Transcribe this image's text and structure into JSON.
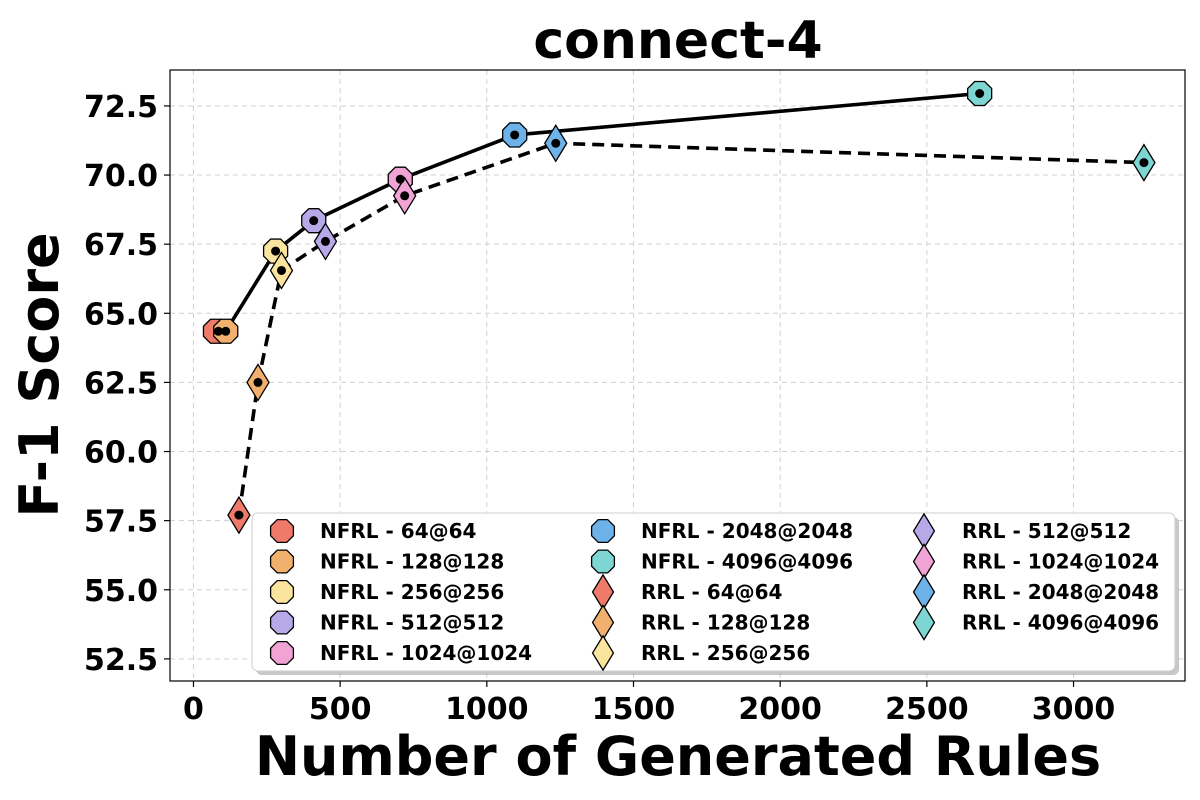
{
  "chart_data": {
    "type": "scatter",
    "title": "connect-4",
    "xlabel": "Number of Generated Rules",
    "ylabel": "F-1 Score",
    "xlim": [
      -80,
      3380
    ],
    "ylim": [
      51.7,
      73.8
    ],
    "xticks": [
      0,
      500,
      1000,
      1500,
      2000,
      2500,
      3000
    ],
    "xtick_labels": [
      "0",
      "500",
      "1000",
      "1500",
      "2000",
      "2500",
      "3000"
    ],
    "yticks": [
      52.5,
      55.0,
      57.5,
      60.0,
      62.5,
      65.0,
      67.5,
      70.0,
      72.5
    ],
    "ytick_labels": [
      "52.5",
      "55.0",
      "57.5",
      "60.0",
      "62.5",
      "65.0",
      "67.5",
      "70.0",
      "72.5"
    ],
    "grid": true,
    "legend_position": "lower-right",
    "legend_columns": 3,
    "colors": {
      "64@64": "#f07a6a",
      "128@128": "#f2b06e",
      "256@256": "#fbe49e",
      "512@512": "#b7a9e8",
      "1024@1024": "#f0a3d4",
      "2048@2048": "#6db3ea",
      "4096@4096": "#7dd6d2"
    },
    "series": [
      {
        "name": "NFRL",
        "marker": "octagon",
        "line_style": "solid",
        "points": [
          {
            "label": "NFRL - 64@64",
            "config": "64@64",
            "x": 85,
            "y": 64.35,
            "marker_x": 75
          },
          {
            "label": "NFRL - 128@128",
            "config": "128@128",
            "x": 110,
            "y": 64.35,
            "marker_x": 110
          },
          {
            "label": "NFRL - 256@256",
            "config": "256@256",
            "x": 280,
            "y": 67.25,
            "marker_x": 280
          },
          {
            "label": "NFRL - 512@512",
            "config": "512@512",
            "x": 410,
            "y": 68.35,
            "marker_x": 410
          },
          {
            "label": "NFRL - 1024@1024",
            "config": "1024@1024",
            "x": 705,
            "y": 69.85,
            "marker_x": 705
          },
          {
            "label": "NFRL - 2048@2048",
            "config": "2048@2048",
            "x": 1095,
            "y": 71.45,
            "marker_x": 1095
          },
          {
            "label": "NFRL - 4096@4096",
            "config": "4096@4096",
            "x": 2680,
            "y": 72.95,
            "marker_x": 2680
          }
        ]
      },
      {
        "name": "RRL",
        "marker": "thin_diamond",
        "line_style": "dashed",
        "points": [
          {
            "label": "RRL - 64@64",
            "config": "64@64",
            "x": 155,
            "y": 57.7,
            "marker_x": 155
          },
          {
            "label": "RRL - 128@128",
            "config": "128@128",
            "x": 220,
            "y": 62.5,
            "marker_x": 220
          },
          {
            "label": "RRL - 256@256",
            "config": "256@256",
            "x": 300,
            "y": 66.55,
            "marker_x": 300
          },
          {
            "label": "RRL - 512@512",
            "config": "512@512",
            "x": 450,
            "y": 67.6,
            "marker_x": 450
          },
          {
            "label": "RRL - 1024@1024",
            "config": "1024@1024",
            "x": 720,
            "y": 69.25,
            "marker_x": 720
          },
          {
            "label": "RRL - 2048@2048",
            "config": "2048@2048",
            "x": 1235,
            "y": 71.15,
            "marker_x": 1235
          },
          {
            "label": "RRL - 4096@4096",
            "config": "4096@4096",
            "x": 3240,
            "y": 70.45,
            "marker_x": 3240
          }
        ]
      }
    ],
    "legend_entries": [
      {
        "label": "NFRL - 64@64",
        "marker": "octagon",
        "config": "64@64"
      },
      {
        "label": "NFRL - 128@128",
        "marker": "octagon",
        "config": "128@128"
      },
      {
        "label": "NFRL - 256@256",
        "marker": "octagon",
        "config": "256@256"
      },
      {
        "label": "NFRL - 512@512",
        "marker": "octagon",
        "config": "512@512"
      },
      {
        "label": "NFRL - 1024@1024",
        "marker": "octagon",
        "config": "1024@1024"
      },
      {
        "label": "NFRL - 2048@2048",
        "marker": "octagon",
        "config": "2048@2048"
      },
      {
        "label": "NFRL - 4096@4096",
        "marker": "octagon",
        "config": "4096@4096"
      },
      {
        "label": "RRL - 64@64",
        "marker": "thin_diamond",
        "config": "64@64"
      },
      {
        "label": "RRL - 128@128",
        "marker": "thin_diamond",
        "config": "128@128"
      },
      {
        "label": "RRL - 256@256",
        "marker": "thin_diamond",
        "config": "256@256"
      },
      {
        "label": "RRL - 512@512",
        "marker": "thin_diamond",
        "config": "512@512"
      },
      {
        "label": "RRL - 1024@1024",
        "marker": "thin_diamond",
        "config": "1024@1024"
      },
      {
        "label": "RRL - 2048@2048",
        "marker": "thin_diamond",
        "config": "2048@2048"
      },
      {
        "label": "RRL - 4096@4096",
        "marker": "thin_diamond",
        "config": "4096@4096"
      }
    ]
  }
}
